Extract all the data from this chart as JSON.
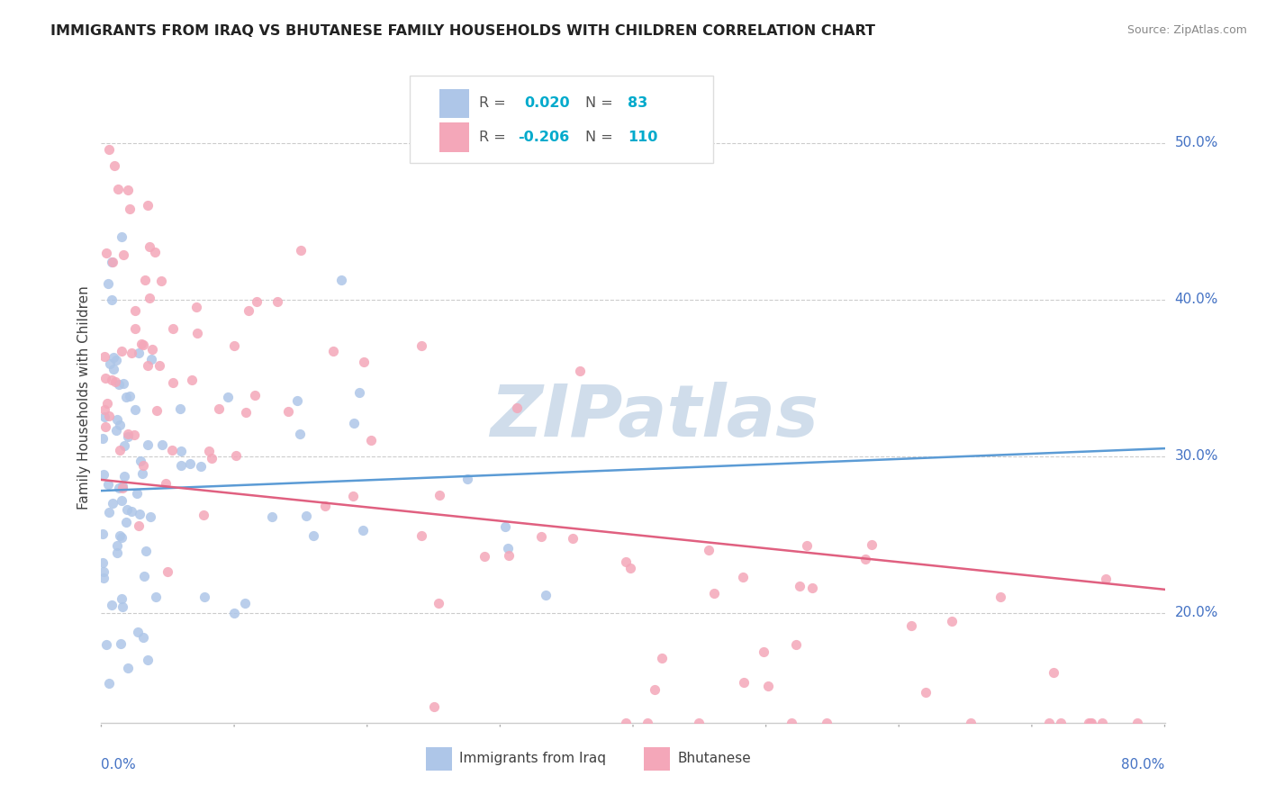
{
  "title": "IMMIGRANTS FROM IRAQ VS BHUTANESE FAMILY HOUSEHOLDS WITH CHILDREN CORRELATION CHART",
  "source": "Source: ZipAtlas.com",
  "ylabel": "Family Households with Children",
  "xmin": 0.0,
  "xmax": 0.8,
  "ymin": 0.13,
  "ymax": 0.545,
  "ytick_vals": [
    0.2,
    0.3,
    0.4,
    0.5
  ],
  "ytick_labels": [
    "20.0%",
    "30.0%",
    "40.0%",
    "50.0%"
  ],
  "series1_color": "#aec6e8",
  "series2_color": "#f4a7b9",
  "trendline1_color": "#5b9bd5",
  "trendline2_color": "#e06080",
  "watermark": "ZIPatlas",
  "watermark_color": "#c8d8e8",
  "iraq_trendline": [
    0.278,
    0.305
  ],
  "bhutan_trendline": [
    0.285,
    0.215
  ],
  "legend_r1": "R =  0.020",
  "legend_n1": "N =  83",
  "legend_r2": "R = -0.206",
  "legend_n2": "N = 110",
  "legend1_color": "#aec6e8",
  "legend2_color": "#f4a7b9",
  "bottom_label1": "Immigrants from Iraq",
  "bottom_label2": "Bhutanese"
}
